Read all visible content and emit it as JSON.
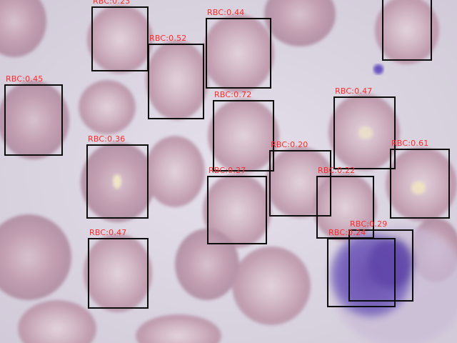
{
  "image": {
    "subject": "blood smear micrograph",
    "colors": {
      "background": "#d9d3df",
      "rbc": "#c4a2b3",
      "rbc_center": "#e2d2dc",
      "nucleus": "#6f5ab3",
      "box": "#0c0c0c",
      "label": "#ff2a2a"
    }
  },
  "detections": [
    {
      "class": "RBC",
      "score": "0.23",
      "label": "RBC:0.23"
    },
    {
      "class": "RBC",
      "score": "0.44",
      "label": "RBC:0.44"
    },
    {
      "class": "RBC",
      "score": "",
      "label": ""
    },
    {
      "class": "RBC",
      "score": "0.52",
      "label": "RBC:0.52"
    },
    {
      "class": "RBC",
      "score": "0.45",
      "label": "RBC:0.45"
    },
    {
      "class": "RBC",
      "score": "0.72",
      "label": "RBC:0.72"
    },
    {
      "class": "RBC",
      "score": "0.47",
      "label": "RBC:0.47"
    },
    {
      "class": "RBC",
      "score": "0.36",
      "label": "RBC:0.36"
    },
    {
      "class": "RBC",
      "score": "0.20",
      "label": "RBC:0.20"
    },
    {
      "class": "RBC",
      "score": "0.61",
      "label": "RBC:0.61"
    },
    {
      "class": "RBC",
      "score": "0.27",
      "label": "RBC:0.27"
    },
    {
      "class": "RBC",
      "score": "0.22",
      "label": "RBC:0.22"
    },
    {
      "class": "RBC",
      "score": "0.47",
      "label": "RBC:0.47"
    },
    {
      "class": "RBC",
      "score": "0.29",
      "label": "RBC:0.29"
    },
    {
      "class": "RBC",
      "score": "0.24",
      "label": "RBC:0.24"
    }
  ]
}
